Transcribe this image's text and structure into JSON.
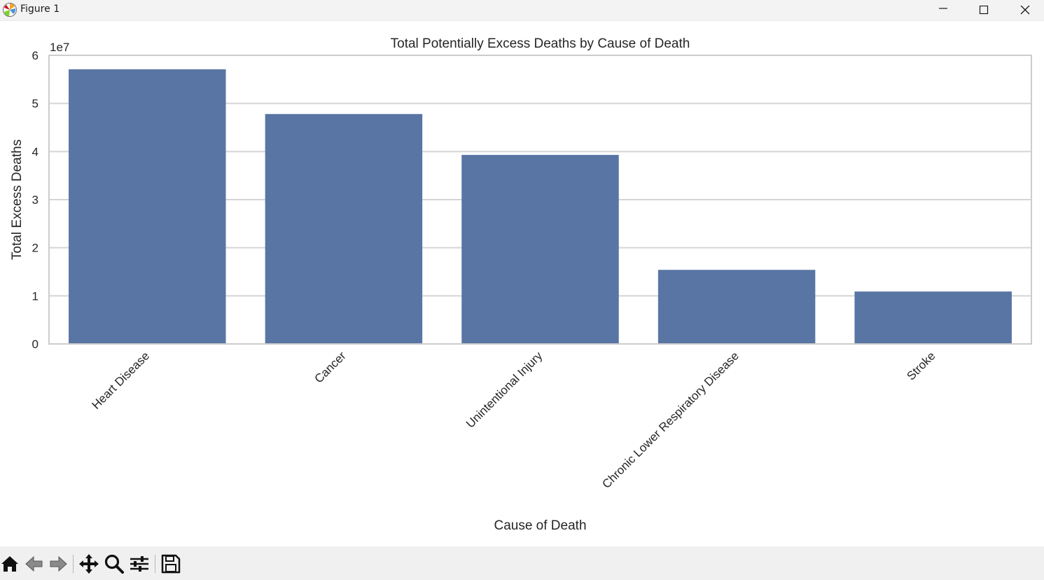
{
  "window": {
    "title": "Figure 1"
  },
  "icons": {
    "app": "matplotlib-logo-icon",
    "minimize": "minimize-icon",
    "maximize": "maximize-icon",
    "close": "close-icon"
  },
  "toolbar": {
    "buttons": [
      "home-icon",
      "back-arrow-icon",
      "forward-arrow-icon",
      "pan-move-icon",
      "zoom-magnifier-icon",
      "configure-subplots-icon",
      "save-floppy-icon"
    ]
  },
  "colors": {
    "bar": "#5975a4",
    "grid": "#d5d5d5",
    "axes_edge": "#cccccc",
    "text": "#262626"
  },
  "chart_data": {
    "type": "bar",
    "title": "Total Potentially Excess Deaths by Cause of Death",
    "xlabel": "Cause of Death",
    "ylabel": "Total Excess Deaths",
    "offset_text": "1e7",
    "categories": [
      "Heart Disease",
      "Cancer",
      "Unintentional Injury",
      "Chronic Lower Respiratory Disease",
      "Stroke"
    ],
    "values": [
      57100000,
      47800000,
      39300000,
      15400000,
      10900000
    ],
    "ylim": [
      0,
      60000000
    ],
    "yticks": [
      0,
      10000000,
      20000000,
      30000000,
      40000000,
      50000000,
      60000000
    ],
    "ytick_labels": [
      "0",
      "1",
      "2",
      "3",
      "4",
      "5",
      "6"
    ],
    "grid": "horizontal",
    "xtick_rotation": 45
  }
}
